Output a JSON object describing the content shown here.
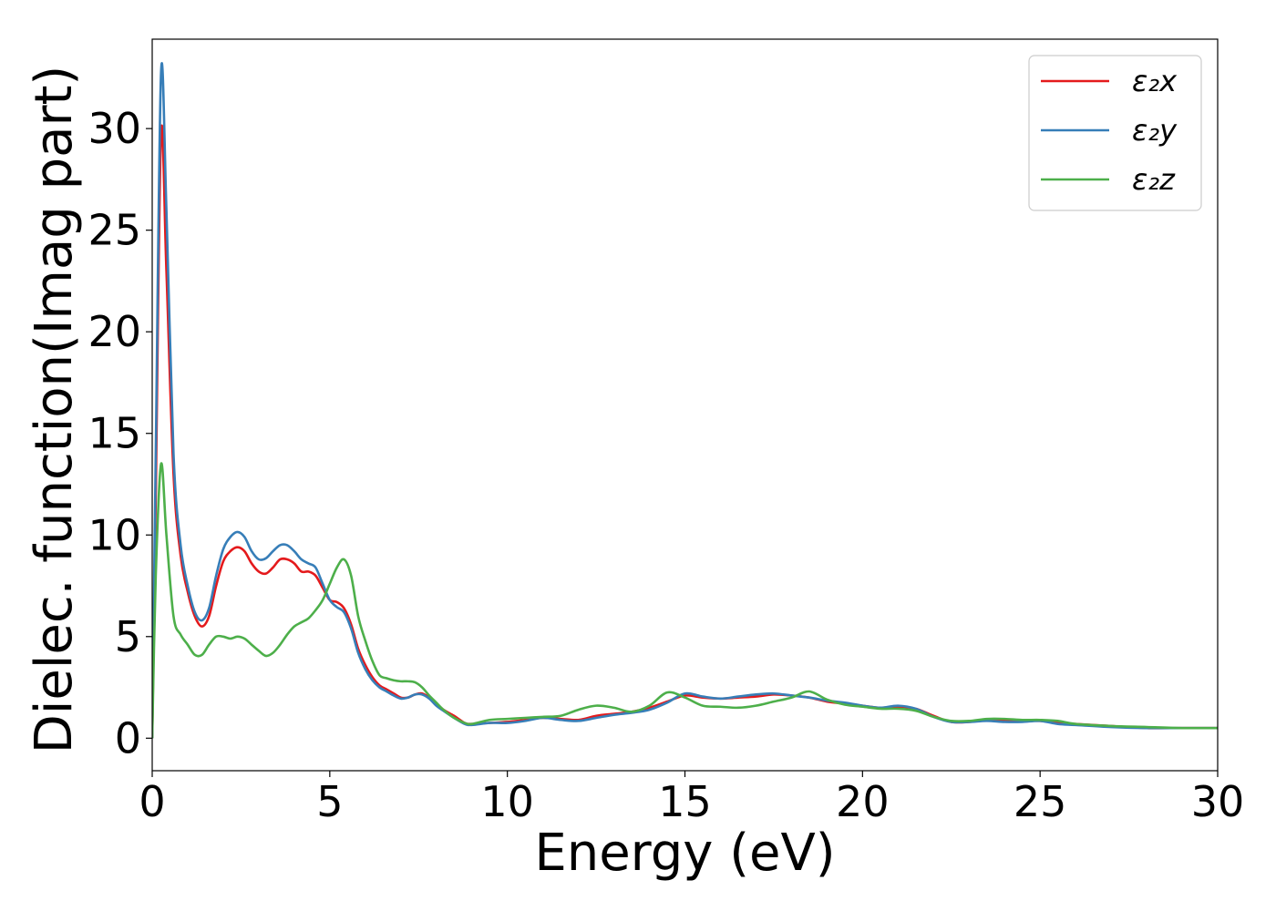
{
  "chart_data": {
    "type": "line",
    "title": "",
    "xlabel": "Energy (eV)",
    "ylabel": "Dielec. function(Imag part)",
    "xlim": [
      0,
      30
    ],
    "ylim": [
      -1.6,
      34.4
    ],
    "xticks": [
      0,
      5,
      10,
      15,
      20,
      25,
      30
    ],
    "yticks": [
      0,
      5,
      10,
      15,
      20,
      25,
      30
    ],
    "grid": false,
    "legend_position": "top-right",
    "series": [
      {
        "name": "ε₂x",
        "color": "#e41a1c",
        "points": [
          [
            0,
            0
          ],
          [
            0.1,
            12
          ],
          [
            0.25,
            29.8
          ],
          [
            0.4,
            23
          ],
          [
            0.6,
            13
          ],
          [
            0.8,
            9
          ],
          [
            1.0,
            7.2
          ],
          [
            1.2,
            6.0
          ],
          [
            1.4,
            5.5
          ],
          [
            1.6,
            6.0
          ],
          [
            1.8,
            7.5
          ],
          [
            2.0,
            8.7
          ],
          [
            2.2,
            9.2
          ],
          [
            2.4,
            9.4
          ],
          [
            2.6,
            9.2
          ],
          [
            2.8,
            8.6
          ],
          [
            3.0,
            8.2
          ],
          [
            3.2,
            8.1
          ],
          [
            3.4,
            8.4
          ],
          [
            3.6,
            8.8
          ],
          [
            3.8,
            8.8
          ],
          [
            4.0,
            8.6
          ],
          [
            4.2,
            8.2
          ],
          [
            4.4,
            8.2
          ],
          [
            4.6,
            8.0
          ],
          [
            4.8,
            7.4
          ],
          [
            5.0,
            6.8
          ],
          [
            5.2,
            6.7
          ],
          [
            5.4,
            6.4
          ],
          [
            5.6,
            5.6
          ],
          [
            5.8,
            4.4
          ],
          [
            6.0,
            3.6
          ],
          [
            6.2,
            3.0
          ],
          [
            6.4,
            2.6
          ],
          [
            6.6,
            2.4
          ],
          [
            6.8,
            2.2
          ],
          [
            7.0,
            2.0
          ],
          [
            7.2,
            2.0
          ],
          [
            7.4,
            2.15
          ],
          [
            7.6,
            2.2
          ],
          [
            7.8,
            2.0
          ],
          [
            8.0,
            1.7
          ],
          [
            8.2,
            1.4
          ],
          [
            8.5,
            1.1
          ],
          [
            8.8,
            0.75
          ],
          [
            9.0,
            0.7
          ],
          [
            9.5,
            0.75
          ],
          [
            10.0,
            0.8
          ],
          [
            10.5,
            0.9
          ],
          [
            11.0,
            1.0
          ],
          [
            11.5,
            0.95
          ],
          [
            12.0,
            0.9
          ],
          [
            12.5,
            1.1
          ],
          [
            13.0,
            1.2
          ],
          [
            13.5,
            1.3
          ],
          [
            14.0,
            1.5
          ],
          [
            14.5,
            1.8
          ],
          [
            15.0,
            2.1
          ],
          [
            15.5,
            2.0
          ],
          [
            16.0,
            1.95
          ],
          [
            16.5,
            2.0
          ],
          [
            17.0,
            2.05
          ],
          [
            17.5,
            2.15
          ],
          [
            18.0,
            2.1
          ],
          [
            18.5,
            2.0
          ],
          [
            19.0,
            1.8
          ],
          [
            19.5,
            1.7
          ],
          [
            20.0,
            1.6
          ],
          [
            20.5,
            1.5
          ],
          [
            21.0,
            1.55
          ],
          [
            21.5,
            1.45
          ],
          [
            22.0,
            1.1
          ],
          [
            22.5,
            0.8
          ],
          [
            23.0,
            0.8
          ],
          [
            23.5,
            0.9
          ],
          [
            24.0,
            0.85
          ],
          [
            24.5,
            0.85
          ],
          [
            25.0,
            0.85
          ],
          [
            25.5,
            0.75
          ],
          [
            26.0,
            0.7
          ],
          [
            27.0,
            0.6
          ],
          [
            28.0,
            0.5
          ],
          [
            29.0,
            0.5
          ],
          [
            30.0,
            0.5
          ]
        ]
      },
      {
        "name": "ε₂y",
        "color": "#377eb8",
        "points": [
          [
            0,
            0
          ],
          [
            0.1,
            14
          ],
          [
            0.25,
            32.8
          ],
          [
            0.4,
            26
          ],
          [
            0.6,
            14
          ],
          [
            0.8,
            9.5
          ],
          [
            1.0,
            7.5
          ],
          [
            1.2,
            6.2
          ],
          [
            1.4,
            5.8
          ],
          [
            1.6,
            6.4
          ],
          [
            1.8,
            8.0
          ],
          [
            2.0,
            9.3
          ],
          [
            2.2,
            9.9
          ],
          [
            2.4,
            10.15
          ],
          [
            2.6,
            9.9
          ],
          [
            2.8,
            9.2
          ],
          [
            3.0,
            8.8
          ],
          [
            3.2,
            8.85
          ],
          [
            3.4,
            9.2
          ],
          [
            3.6,
            9.5
          ],
          [
            3.8,
            9.5
          ],
          [
            4.0,
            9.2
          ],
          [
            4.2,
            8.8
          ],
          [
            4.4,
            8.6
          ],
          [
            4.6,
            8.4
          ],
          [
            4.8,
            7.6
          ],
          [
            5.0,
            6.8
          ],
          [
            5.2,
            6.45
          ],
          [
            5.4,
            6.2
          ],
          [
            5.6,
            5.4
          ],
          [
            5.8,
            4.2
          ],
          [
            6.0,
            3.4
          ],
          [
            6.2,
            2.85
          ],
          [
            6.4,
            2.5
          ],
          [
            6.6,
            2.3
          ],
          [
            6.8,
            2.1
          ],
          [
            7.0,
            1.95
          ],
          [
            7.2,
            2.0
          ],
          [
            7.4,
            2.15
          ],
          [
            7.6,
            2.15
          ],
          [
            7.8,
            1.95
          ],
          [
            8.0,
            1.6
          ],
          [
            8.2,
            1.35
          ],
          [
            8.5,
            1.0
          ],
          [
            8.8,
            0.7
          ],
          [
            9.0,
            0.65
          ],
          [
            9.5,
            0.75
          ],
          [
            10.0,
            0.75
          ],
          [
            10.5,
            0.85
          ],
          [
            11.0,
            1.0
          ],
          [
            11.5,
            0.9
          ],
          [
            12.0,
            0.85
          ],
          [
            12.5,
            1.0
          ],
          [
            13.0,
            1.15
          ],
          [
            13.5,
            1.25
          ],
          [
            14.0,
            1.4
          ],
          [
            14.5,
            1.75
          ],
          [
            15.0,
            2.2
          ],
          [
            15.5,
            2.05
          ],
          [
            16.0,
            1.95
          ],
          [
            16.5,
            2.05
          ],
          [
            17.0,
            2.15
          ],
          [
            17.5,
            2.2
          ],
          [
            18.0,
            2.1
          ],
          [
            18.5,
            2.0
          ],
          [
            19.0,
            1.85
          ],
          [
            19.5,
            1.75
          ],
          [
            20.0,
            1.6
          ],
          [
            20.5,
            1.5
          ],
          [
            21.0,
            1.6
          ],
          [
            21.5,
            1.45
          ],
          [
            22.0,
            1.05
          ],
          [
            22.5,
            0.8
          ],
          [
            23.0,
            0.8
          ],
          [
            23.5,
            0.85
          ],
          [
            24.0,
            0.8
          ],
          [
            24.5,
            0.8
          ],
          [
            25.0,
            0.85
          ],
          [
            25.5,
            0.7
          ],
          [
            26.0,
            0.65
          ],
          [
            27.0,
            0.55
          ],
          [
            28.0,
            0.5
          ],
          [
            29.0,
            0.5
          ],
          [
            30.0,
            0.5
          ]
        ]
      },
      {
        "name": "ε₂z",
        "color": "#4daf4a",
        "points": [
          [
            0,
            0
          ],
          [
            0.1,
            8
          ],
          [
            0.25,
            13.5
          ],
          [
            0.4,
            10
          ],
          [
            0.6,
            6.0
          ],
          [
            0.8,
            5.1
          ],
          [
            1.0,
            4.6
          ],
          [
            1.2,
            4.1
          ],
          [
            1.4,
            4.1
          ],
          [
            1.6,
            4.6
          ],
          [
            1.8,
            5.0
          ],
          [
            2.0,
            5.0
          ],
          [
            2.2,
            4.9
          ],
          [
            2.4,
            5.0
          ],
          [
            2.6,
            4.9
          ],
          [
            2.8,
            4.6
          ],
          [
            3.0,
            4.3
          ],
          [
            3.2,
            4.05
          ],
          [
            3.4,
            4.2
          ],
          [
            3.6,
            4.6
          ],
          [
            3.8,
            5.1
          ],
          [
            4.0,
            5.5
          ],
          [
            4.2,
            5.7
          ],
          [
            4.4,
            5.9
          ],
          [
            4.6,
            6.3
          ],
          [
            4.8,
            6.8
          ],
          [
            5.0,
            7.6
          ],
          [
            5.2,
            8.4
          ],
          [
            5.4,
            8.8
          ],
          [
            5.6,
            8.0
          ],
          [
            5.8,
            6.0
          ],
          [
            6.0,
            4.8
          ],
          [
            6.2,
            3.8
          ],
          [
            6.4,
            3.1
          ],
          [
            6.6,
            2.95
          ],
          [
            6.8,
            2.85
          ],
          [
            7.0,
            2.8
          ],
          [
            7.2,
            2.8
          ],
          [
            7.4,
            2.75
          ],
          [
            7.6,
            2.5
          ],
          [
            7.8,
            2.1
          ],
          [
            8.0,
            1.75
          ],
          [
            8.2,
            1.4
          ],
          [
            8.5,
            1.0
          ],
          [
            8.8,
            0.75
          ],
          [
            9.0,
            0.7
          ],
          [
            9.5,
            0.9
          ],
          [
            10.0,
            0.95
          ],
          [
            10.5,
            1.0
          ],
          [
            11.0,
            1.05
          ],
          [
            11.5,
            1.1
          ],
          [
            12.0,
            1.4
          ],
          [
            12.5,
            1.6
          ],
          [
            13.0,
            1.5
          ],
          [
            13.5,
            1.3
          ],
          [
            14.0,
            1.6
          ],
          [
            14.5,
            2.25
          ],
          [
            15.0,
            2.0
          ],
          [
            15.5,
            1.6
          ],
          [
            16.0,
            1.55
          ],
          [
            16.5,
            1.5
          ],
          [
            17.0,
            1.6
          ],
          [
            17.5,
            1.8
          ],
          [
            18.0,
            2.0
          ],
          [
            18.5,
            2.3
          ],
          [
            19.0,
            1.9
          ],
          [
            19.5,
            1.65
          ],
          [
            20.0,
            1.55
          ],
          [
            20.5,
            1.45
          ],
          [
            21.0,
            1.45
          ],
          [
            21.5,
            1.35
          ],
          [
            22.0,
            1.05
          ],
          [
            22.5,
            0.85
          ],
          [
            23.0,
            0.85
          ],
          [
            23.5,
            0.95
          ],
          [
            24.0,
            0.95
          ],
          [
            24.5,
            0.9
          ],
          [
            25.0,
            0.9
          ],
          [
            25.5,
            0.85
          ],
          [
            26.0,
            0.7
          ],
          [
            27.0,
            0.6
          ],
          [
            28.0,
            0.55
          ],
          [
            29.0,
            0.5
          ],
          [
            30.0,
            0.5
          ]
        ]
      }
    ]
  }
}
